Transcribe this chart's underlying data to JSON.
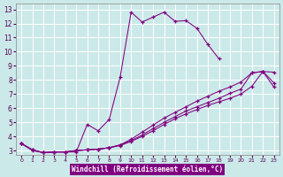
{
  "xlabel": "Windchill (Refroidissement éolien,°C)",
  "bg_color": "#cce9e9",
  "line_color": "#800080",
  "xlim": [
    -0.5,
    23.5
  ],
  "ylim": [
    2.7,
    13.4
  ],
  "xticks": [
    0,
    1,
    2,
    3,
    4,
    5,
    6,
    7,
    8,
    9,
    10,
    11,
    12,
    13,
    14,
    15,
    16,
    17,
    18,
    19,
    20,
    21,
    22,
    23
  ],
  "yticks": [
    3,
    4,
    5,
    6,
    7,
    8,
    9,
    10,
    11,
    12,
    13
  ],
  "line1_x": [
    0,
    1,
    2,
    3,
    4,
    5,
    6,
    7,
    8,
    9,
    10,
    11,
    12,
    13,
    14,
    15,
    16,
    17,
    18
  ],
  "line1_y": [
    3.5,
    3.0,
    2.85,
    2.9,
    2.9,
    2.9,
    4.85,
    4.4,
    5.2,
    8.2,
    12.8,
    12.1,
    12.45,
    12.8,
    12.15,
    12.2,
    11.65,
    10.5,
    9.5
  ],
  "line2_x": [
    0,
    1,
    2,
    3,
    4,
    5,
    6,
    7,
    8,
    9,
    10,
    11,
    12,
    13,
    14,
    15,
    16,
    17,
    18,
    19,
    20,
    21,
    22,
    23
  ],
  "line2_y": [
    3.5,
    3.05,
    2.85,
    2.9,
    2.9,
    3.0,
    3.05,
    3.1,
    3.2,
    3.4,
    3.8,
    4.3,
    4.8,
    5.3,
    5.7,
    6.1,
    6.5,
    6.85,
    7.2,
    7.5,
    7.85,
    8.5,
    8.6,
    7.8
  ],
  "line3_x": [
    0,
    1,
    2,
    3,
    4,
    5,
    6,
    7,
    8,
    9,
    10,
    11,
    12,
    13,
    14,
    15,
    16,
    17,
    18,
    19,
    20,
    21,
    22,
    23
  ],
  "line3_y": [
    3.5,
    3.05,
    2.85,
    2.9,
    2.9,
    3.0,
    3.05,
    3.1,
    3.2,
    3.4,
    3.7,
    4.1,
    4.55,
    5.0,
    5.4,
    5.8,
    6.1,
    6.4,
    6.7,
    7.05,
    7.35,
    8.5,
    8.6,
    8.55
  ],
  "line4_x": [
    0,
    1,
    2,
    3,
    4,
    5,
    6,
    7,
    8,
    9,
    10,
    11,
    12,
    13,
    14,
    15,
    16,
    17,
    18,
    19,
    20,
    21,
    22,
    23
  ],
  "line4_y": [
    3.5,
    3.05,
    2.85,
    2.9,
    2.9,
    3.0,
    3.05,
    3.1,
    3.2,
    3.35,
    3.65,
    4.0,
    4.4,
    4.85,
    5.25,
    5.6,
    5.9,
    6.2,
    6.45,
    6.7,
    7.0,
    7.55,
    8.6,
    7.5
  ]
}
